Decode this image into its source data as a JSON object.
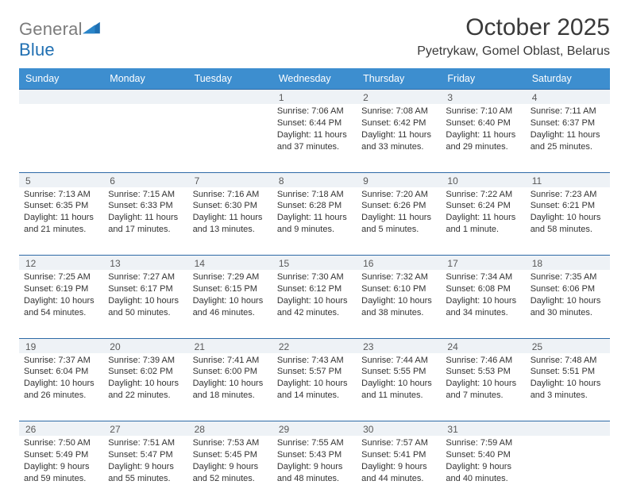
{
  "brand": {
    "name_gray": "General",
    "name_blue": "Blue"
  },
  "title": "October 2025",
  "location": "Pyetrykaw, Gomel Oblast, Belarus",
  "colors": {
    "header_bg": "#3d8ecf",
    "header_text": "#ffffff",
    "rule": "#2e6aa6",
    "daynum_bg": "#eef2f6",
    "text": "#333333",
    "logo_blue": "#1f6fb2"
  },
  "weekdays": [
    "Sunday",
    "Monday",
    "Tuesday",
    "Wednesday",
    "Thursday",
    "Friday",
    "Saturday"
  ],
  "weeks": [
    [
      {
        "day": "",
        "lines": []
      },
      {
        "day": "",
        "lines": []
      },
      {
        "day": "",
        "lines": []
      },
      {
        "day": "1",
        "lines": [
          "Sunrise: 7:06 AM",
          "Sunset: 6:44 PM",
          "Daylight: 11 hours and 37 minutes."
        ]
      },
      {
        "day": "2",
        "lines": [
          "Sunrise: 7:08 AM",
          "Sunset: 6:42 PM",
          "Daylight: 11 hours and 33 minutes."
        ]
      },
      {
        "day": "3",
        "lines": [
          "Sunrise: 7:10 AM",
          "Sunset: 6:40 PM",
          "Daylight: 11 hours and 29 minutes."
        ]
      },
      {
        "day": "4",
        "lines": [
          "Sunrise: 7:11 AM",
          "Sunset: 6:37 PM",
          "Daylight: 11 hours and 25 minutes."
        ]
      }
    ],
    [
      {
        "day": "5",
        "lines": [
          "Sunrise: 7:13 AM",
          "Sunset: 6:35 PM",
          "Daylight: 11 hours and 21 minutes."
        ]
      },
      {
        "day": "6",
        "lines": [
          "Sunrise: 7:15 AM",
          "Sunset: 6:33 PM",
          "Daylight: 11 hours and 17 minutes."
        ]
      },
      {
        "day": "7",
        "lines": [
          "Sunrise: 7:16 AM",
          "Sunset: 6:30 PM",
          "Daylight: 11 hours and 13 minutes."
        ]
      },
      {
        "day": "8",
        "lines": [
          "Sunrise: 7:18 AM",
          "Sunset: 6:28 PM",
          "Daylight: 11 hours and 9 minutes."
        ]
      },
      {
        "day": "9",
        "lines": [
          "Sunrise: 7:20 AM",
          "Sunset: 6:26 PM",
          "Daylight: 11 hours and 5 minutes."
        ]
      },
      {
        "day": "10",
        "lines": [
          "Sunrise: 7:22 AM",
          "Sunset: 6:24 PM",
          "Daylight: 11 hours and 1 minute."
        ]
      },
      {
        "day": "11",
        "lines": [
          "Sunrise: 7:23 AM",
          "Sunset: 6:21 PM",
          "Daylight: 10 hours and 58 minutes."
        ]
      }
    ],
    [
      {
        "day": "12",
        "lines": [
          "Sunrise: 7:25 AM",
          "Sunset: 6:19 PM",
          "Daylight: 10 hours and 54 minutes."
        ]
      },
      {
        "day": "13",
        "lines": [
          "Sunrise: 7:27 AM",
          "Sunset: 6:17 PM",
          "Daylight: 10 hours and 50 minutes."
        ]
      },
      {
        "day": "14",
        "lines": [
          "Sunrise: 7:29 AM",
          "Sunset: 6:15 PM",
          "Daylight: 10 hours and 46 minutes."
        ]
      },
      {
        "day": "15",
        "lines": [
          "Sunrise: 7:30 AM",
          "Sunset: 6:12 PM",
          "Daylight: 10 hours and 42 minutes."
        ]
      },
      {
        "day": "16",
        "lines": [
          "Sunrise: 7:32 AM",
          "Sunset: 6:10 PM",
          "Daylight: 10 hours and 38 minutes."
        ]
      },
      {
        "day": "17",
        "lines": [
          "Sunrise: 7:34 AM",
          "Sunset: 6:08 PM",
          "Daylight: 10 hours and 34 minutes."
        ]
      },
      {
        "day": "18",
        "lines": [
          "Sunrise: 7:35 AM",
          "Sunset: 6:06 PM",
          "Daylight: 10 hours and 30 minutes."
        ]
      }
    ],
    [
      {
        "day": "19",
        "lines": [
          "Sunrise: 7:37 AM",
          "Sunset: 6:04 PM",
          "Daylight: 10 hours and 26 minutes."
        ]
      },
      {
        "day": "20",
        "lines": [
          "Sunrise: 7:39 AM",
          "Sunset: 6:02 PM",
          "Daylight: 10 hours and 22 minutes."
        ]
      },
      {
        "day": "21",
        "lines": [
          "Sunrise: 7:41 AM",
          "Sunset: 6:00 PM",
          "Daylight: 10 hours and 18 minutes."
        ]
      },
      {
        "day": "22",
        "lines": [
          "Sunrise: 7:43 AM",
          "Sunset: 5:57 PM",
          "Daylight: 10 hours and 14 minutes."
        ]
      },
      {
        "day": "23",
        "lines": [
          "Sunrise: 7:44 AM",
          "Sunset: 5:55 PM",
          "Daylight: 10 hours and 11 minutes."
        ]
      },
      {
        "day": "24",
        "lines": [
          "Sunrise: 7:46 AM",
          "Sunset: 5:53 PM",
          "Daylight: 10 hours and 7 minutes."
        ]
      },
      {
        "day": "25",
        "lines": [
          "Sunrise: 7:48 AM",
          "Sunset: 5:51 PM",
          "Daylight: 10 hours and 3 minutes."
        ]
      }
    ],
    [
      {
        "day": "26",
        "lines": [
          "Sunrise: 7:50 AM",
          "Sunset: 5:49 PM",
          "Daylight: 9 hours and 59 minutes."
        ]
      },
      {
        "day": "27",
        "lines": [
          "Sunrise: 7:51 AM",
          "Sunset: 5:47 PM",
          "Daylight: 9 hours and 55 minutes."
        ]
      },
      {
        "day": "28",
        "lines": [
          "Sunrise: 7:53 AM",
          "Sunset: 5:45 PM",
          "Daylight: 9 hours and 52 minutes."
        ]
      },
      {
        "day": "29",
        "lines": [
          "Sunrise: 7:55 AM",
          "Sunset: 5:43 PM",
          "Daylight: 9 hours and 48 minutes."
        ]
      },
      {
        "day": "30",
        "lines": [
          "Sunrise: 7:57 AM",
          "Sunset: 5:41 PM",
          "Daylight: 9 hours and 44 minutes."
        ]
      },
      {
        "day": "31",
        "lines": [
          "Sunrise: 7:59 AM",
          "Sunset: 5:40 PM",
          "Daylight: 9 hours and 40 minutes."
        ]
      },
      {
        "day": "",
        "lines": []
      }
    ]
  ]
}
